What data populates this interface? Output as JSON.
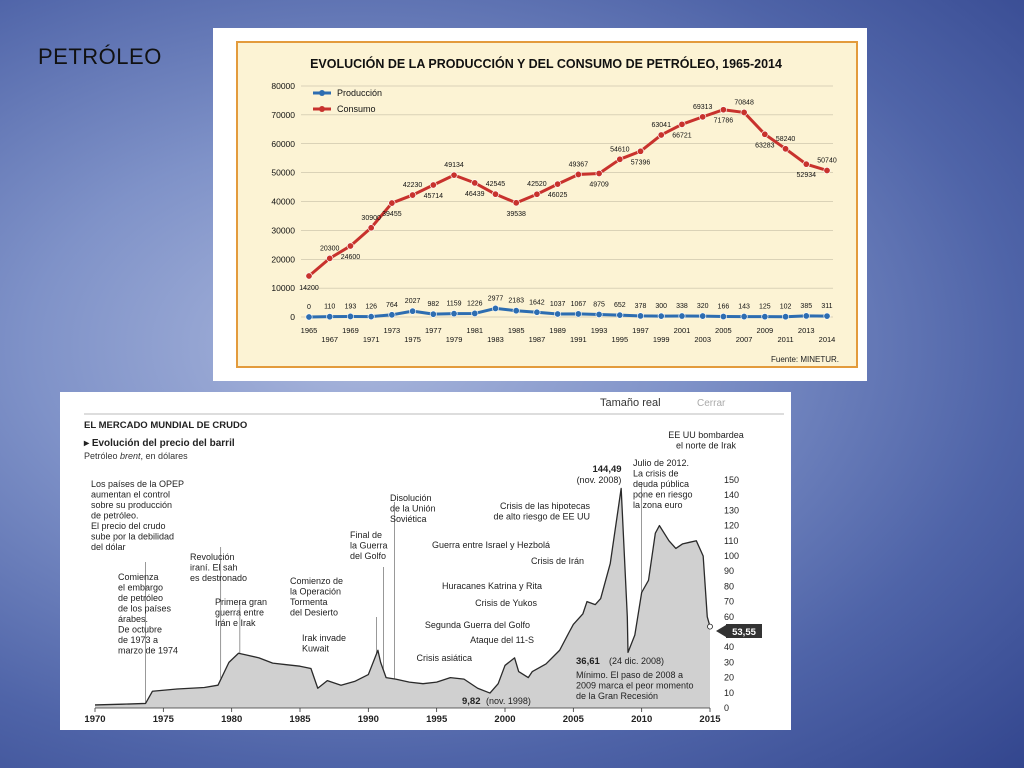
{
  "slide": {
    "title": "PETRÓLEO"
  },
  "chart_data": [
    {
      "type": "line",
      "title": "EVOLUCIÓN DE LA PRODUCCIÓN Y DEL CONSUMO DE PETRÓLEO, 1965-2014",
      "source": "Fuente: MINETUR.",
      "ylim": [
        0,
        80000
      ],
      "yticks": [
        0,
        10000,
        20000,
        30000,
        40000,
        50000,
        60000,
        70000,
        80000
      ],
      "grid": true,
      "legend_position": "top-left",
      "x": [
        1965,
        1967,
        1969,
        1971,
        1973,
        1975,
        1977,
        1979,
        1981,
        1983,
        1985,
        1987,
        1989,
        1991,
        1993,
        1995,
        1997,
        1999,
        2001,
        2003,
        2005,
        2007,
        2009,
        2011,
        2013,
        2014
      ],
      "xtick_labels": [
        "1965",
        "1967",
        "1969",
        "1971",
        "1973",
        "1975",
        "1977",
        "1979",
        "1981",
        "1983",
        "1985",
        "1987",
        "1989",
        "1991",
        "1993",
        "1995",
        "1997",
        "1999",
        "2001",
        "2003",
        "2005",
        "2007",
        "2009",
        "2011",
        "2013",
        "2014"
      ],
      "series": [
        {
          "name": "Producción",
          "color": "#2d6db1",
          "values": [
            0,
            110,
            193,
            126,
            764,
            2027,
            982,
            1159,
            1226,
            2977,
            2183,
            1642,
            1037,
            1067,
            875,
            652,
            378,
            300,
            338,
            320,
            166,
            143,
            125,
            102,
            385,
            311
          ]
        },
        {
          "name": "Consumo",
          "color": "#c8322d",
          "values": [
            14200,
            20300,
            24600,
            30900,
            39455,
            42230,
            45714,
            49134,
            46439,
            42545,
            39538,
            42520,
            46025,
            49367,
            49709,
            54610,
            57396,
            63041,
            66721,
            69313,
            71786,
            70848,
            63283,
            58240,
            52934,
            50740
          ]
        }
      ]
    },
    {
      "type": "area",
      "header": "EL MERCADO MUNDIAL DE CRUDO",
      "title": "Evolución del precio del barril",
      "subtitle_before": "Petróleo ",
      "subtitle_em": "brent",
      "subtitle_after": ", en dólares",
      "ui": {
        "real_size": "Tamaño real",
        "close": "Cerrar"
      },
      "ylim": [
        0,
        150
      ],
      "yticks": [
        0,
        10,
        20,
        30,
        40,
        50,
        60,
        70,
        80,
        90,
        100,
        110,
        120,
        130,
        140,
        150
      ],
      "xlim": [
        1970,
        2015
      ],
      "xticks": [
        1970,
        1975,
        1980,
        1985,
        1990,
        1995,
        2000,
        2005,
        2010,
        2015
      ],
      "series": [
        {
          "name": "Petróleo brent",
          "x": [
            1970,
            1972,
            1973.7,
            1974.2,
            1976,
            1978,
            1979,
            1979.8,
            1980.5,
            1981,
            1982,
            1983,
            1984,
            1985,
            1985.8,
            1986.3,
            1987,
            1988,
            1989,
            1990,
            1990.7,
            1990.9,
            1991.3,
            1992,
            1993,
            1994,
            1995,
            1996,
            1997,
            1998,
            1998.9,
            1999.5,
            2000,
            2000.7,
            2001,
            2001.7,
            2002,
            2003,
            2004,
            2004.7,
            2005,
            2005.7,
            2006,
            2006.6,
            2007,
            2007.7,
            2008.5,
            2008.95,
            2009,
            2009.5,
            2010,
            2010.5,
            2011,
            2011.3,
            2012,
            2012.5,
            2013,
            2013.5,
            2014,
            2014.5,
            2014.8,
            2015
          ],
          "y": [
            2,
            2.5,
            3,
            11,
            12.5,
            13.5,
            15,
            30,
            36,
            35,
            33,
            29.5,
            28.5,
            27.5,
            26,
            13,
            18,
            15,
            17.5,
            22,
            38,
            30,
            20,
            19,
            17,
            16,
            17,
            20,
            19,
            13,
            9.82,
            16,
            28,
            33,
            24,
            20,
            24,
            29,
            38,
            50,
            55,
            62,
            70,
            68,
            72,
            95,
            144.49,
            60,
            36.61,
            48,
            76,
            84,
            115,
            120,
            110,
            105,
            108,
            109,
            110,
            100,
            60,
            53.55
          ]
        }
      ],
      "data_labels": [
        {
          "text": "144,49",
          "sub": "(nov. 2008)"
        },
        {
          "text": "9,82",
          "sub": "(nov. 1998)"
        },
        {
          "text": "36,61",
          "sub": "(24 dic. 2008)"
        },
        {
          "text": "53,55"
        }
      ],
      "annotations": [
        {
          "id": "opep",
          "lines": [
            "Los países de la OPEP",
            "aumentan el control",
            "sobre su producción",
            "de petróleo.",
            "El precio del crudo",
            "sube por la debilidad",
            "del dólar"
          ]
        },
        {
          "id": "embargo",
          "lines": [
            "Comienza",
            "el embargo",
            "de petróleo",
            "de los países",
            "árabes.",
            "De octubre",
            "de 1973 a",
            "marzo de 1974"
          ]
        },
        {
          "id": "revolucion",
          "lines": [
            "Revolución",
            "iraní. El sah",
            "es destronado"
          ]
        },
        {
          "id": "guerra-iran-irak",
          "lines": [
            "Primera gran",
            "guerra entre",
            "Irán e Irak"
          ]
        },
        {
          "id": "disolucion",
          "lines": [
            "Disolución",
            "de la Unión",
            "Soviética"
          ]
        },
        {
          "id": "final-golfo",
          "lines": [
            "Final de",
            "la Guerra",
            "del Golfo"
          ]
        },
        {
          "id": "tormenta",
          "lines": [
            "Comienzo de",
            "la Operación",
            "Tormenta",
            "del Desierto"
          ]
        },
        {
          "id": "kuwait",
          "lines": [
            "Irak invade",
            "Kuwait"
          ]
        },
        {
          "id": "asiatica",
          "lines": [
            "Crisis asiática"
          ]
        },
        {
          "id": "11s",
          "lines": [
            "Ataque del 11-S"
          ]
        },
        {
          "id": "segunda-golfo",
          "lines": [
            "Segunda Guerra del Golfo"
          ]
        },
        {
          "id": "yukos",
          "lines": [
            "Crisis de Yukos"
          ]
        },
        {
          "id": "katrina",
          "lines": [
            "Huracanes Katrina y Rita"
          ]
        },
        {
          "id": "iran",
          "lines": [
            "Crisis de Irán"
          ]
        },
        {
          "id": "israel",
          "lines": [
            "Guerra entre Israel y Hezbolá"
          ]
        },
        {
          "id": "hipotecas",
          "lines": [
            "Crisis de las hipotecas",
            "de alto riesgo de EE UU"
          ]
        },
        {
          "id": "euro",
          "lines": [
            "Julio de 2012.",
            "La crisis de",
            "deuda pública",
            "pone en riesgo",
            "la zona euro"
          ]
        },
        {
          "id": "bombardea",
          "lines": [
            "EE UU bombardea",
            "el norte de Irak"
          ]
        },
        {
          "id": "minimo",
          "lines": [
            "Mínimo. El paso de 2008 a",
            "2009 marca el peor momento",
            "de la Gran Recesión"
          ]
        }
      ]
    }
  ]
}
